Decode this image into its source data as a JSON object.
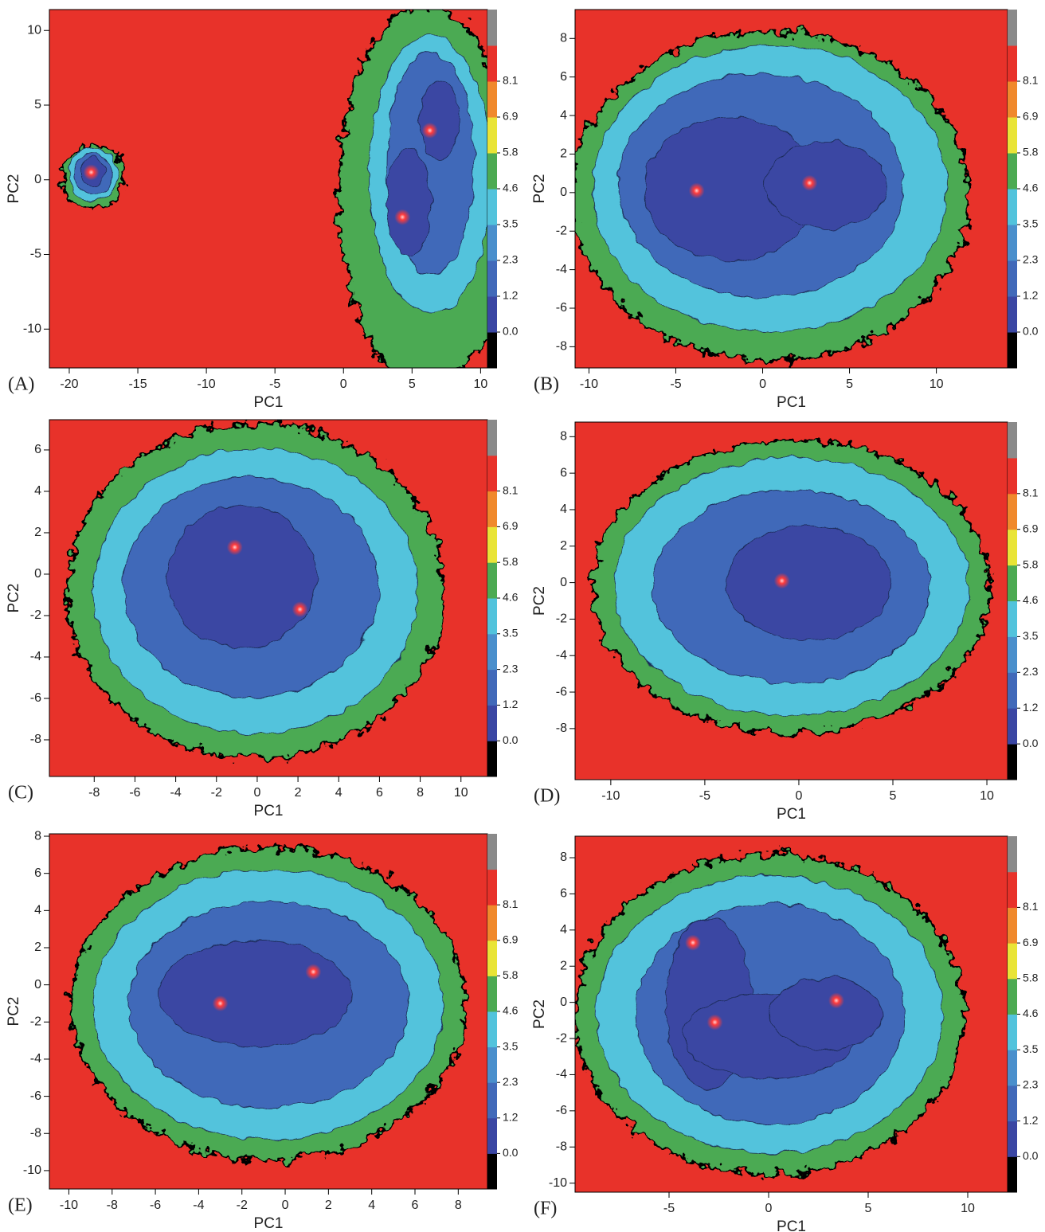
{
  "chart_data": [
    {
      "type": "contour",
      "label": "(A)",
      "xlabel": "PC1",
      "ylabel": "PC2",
      "xlim": [
        -21.45,
        10.5
      ],
      "ylim": [
        -12.6,
        11.4
      ],
      "xticks": [
        -20,
        -15,
        -10,
        -5,
        0,
        5,
        10
      ],
      "yticks": [
        10,
        5,
        0,
        -5,
        -10
      ],
      "colorbar_ticks": [
        {
          "value": 0,
          "label": "0.0"
        },
        1.2,
        2.3,
        3.5,
        4.6,
        5.8,
        6.9,
        8.1
      ],
      "colorbar_colors": [
        "#000000",
        "#3a46a3",
        "#4169b9",
        "#4a8fcc",
        "#52c3dc",
        "#4caa52",
        "#e9e437",
        "#f0892c",
        "#e8322a",
        "#8a8a8a"
      ],
      "minima_x": [
        -18.4,
        6.3,
        4.3
      ],
      "minima_y": [
        0.5,
        3.3,
        -2.5
      ]
    },
    {
      "type": "contour",
      "label": "(B)",
      "xlabel": "PC1",
      "ylabel": "PC2",
      "xlim": [
        -10.8,
        14.1
      ],
      "ylim": [
        -9.1,
        9.5
      ],
      "xticks": [
        -10,
        -5,
        0,
        5,
        10
      ],
      "yticks": [
        8,
        6,
        4,
        2,
        0,
        -2,
        -4,
        -6,
        -8
      ],
      "colorbar_ticks": [
        {
          "value": 0,
          "label": "0.0"
        },
        1.2,
        2.3,
        3.5,
        4.6,
        5.8,
        6.9,
        8.1
      ],
      "colorbar_colors": [
        "#000000",
        "#3a46a3",
        "#4169b9",
        "#4a8fcc",
        "#52c3dc",
        "#4caa52",
        "#e9e437",
        "#f0892c",
        "#e8322a",
        "#8a8a8a"
      ],
      "minima_x": [
        -3.8,
        2.7
      ],
      "minima_y": [
        0.1,
        0.5
      ]
    },
    {
      "type": "contour",
      "label": "(C)",
      "xlabel": "PC1",
      "ylabel": "PC2",
      "xlim": [
        -10.2,
        11.3
      ],
      "ylim": [
        -9.77,
        7.46
      ],
      "xticks": [
        -8,
        -6,
        -4,
        -2,
        0,
        2,
        4,
        6,
        8,
        10
      ],
      "yticks": [
        6,
        4,
        2,
        0,
        -2,
        -4,
        -6,
        -8
      ],
      "colorbar_ticks": [
        {
          "value": 0,
          "label": "0.0"
        },
        1.2,
        2.3,
        3.5,
        4.6,
        5.8,
        6.9,
        8.1
      ],
      "colorbar_colors": [
        "#000000",
        "#3a46a3",
        "#4169b9",
        "#4a8fcc",
        "#52c3dc",
        "#4caa52",
        "#e9e437",
        "#f0892c",
        "#e8322a",
        "#8a8a8a"
      ],
      "minima_x": [
        -1.1,
        2.1
      ],
      "minima_y": [
        1.3,
        -1.7
      ]
    },
    {
      "type": "contour",
      "label": "(D)",
      "xlabel": "PC1",
      "ylabel": "PC2",
      "xlim": [
        -11.9,
        11.1
      ],
      "ylim": [
        -10.8,
        8.8
      ],
      "xticks": [
        -10,
        -5,
        0,
        5,
        10
      ],
      "yticks": [
        8,
        6,
        4,
        2,
        0,
        -2,
        -4,
        -6,
        -8
      ],
      "colorbar_ticks": [
        {
          "value": 0,
          "label": "0.0"
        },
        1.2,
        2.3,
        3.5,
        4.6,
        5.8,
        6.9,
        8.1
      ],
      "colorbar_colors": [
        "#000000",
        "#3a46a3",
        "#4169b9",
        "#4a8fcc",
        "#52c3dc",
        "#4caa52",
        "#e9e437",
        "#f0892c",
        "#e8322a",
        "#8a8a8a"
      ],
      "minima_x": [
        -0.9
      ],
      "minima_y": [
        0.1
      ]
    },
    {
      "type": "contour",
      "label": "(E)",
      "xlabel": "PC1",
      "ylabel": "PC2",
      "xlim": [
        -10.9,
        9.35
      ],
      "ylim": [
        -10.99,
        8.13
      ],
      "xticks": [
        -10,
        -8,
        -6,
        -4,
        -2,
        0,
        2,
        4,
        6,
        8
      ],
      "yticks": [
        8,
        6,
        4,
        2,
        0,
        -2,
        -4,
        -6,
        -8,
        -10
      ],
      "colorbar_ticks": [
        {
          "value": 0,
          "label": "0.0"
        },
        1.2,
        2.3,
        3.5,
        4.6,
        5.8,
        6.9,
        8.1
      ],
      "colorbar_colors": [
        "#000000",
        "#3a46a3",
        "#4169b9",
        "#4a8fcc",
        "#52c3dc",
        "#4caa52",
        "#e9e437",
        "#f0892c",
        "#e8322a",
        "#8a8a8a"
      ],
      "minima_x": [
        -3.0,
        1.3
      ],
      "minima_y": [
        -1.0,
        0.7
      ]
    },
    {
      "type": "contour",
      "label": "(F)",
      "xlabel": "PC1",
      "ylabel": "PC2",
      "xlim": [
        -9.72,
        12.0
      ],
      "ylim": [
        -10.5,
        9.19
      ],
      "xticks": [
        -5,
        0,
        5,
        10
      ],
      "yticks": [
        8,
        6,
        4,
        2,
        0,
        -2,
        -4,
        -6,
        -8,
        -10
      ],
      "colorbar_ticks": [
        {
          "value": 0,
          "label": "0.0"
        },
        1.2,
        2.3,
        3.5,
        4.6,
        5.8,
        6.9,
        8.1
      ],
      "colorbar_colors": [
        "#000000",
        "#3a46a3",
        "#4169b9",
        "#4a8fcc",
        "#52c3dc",
        "#4caa52",
        "#e9e437",
        "#f0892c",
        "#e8322a",
        "#8a8a8a"
      ],
      "minima_x": [
        -3.8,
        -2.7,
        3.4
      ],
      "minima_y": [
        3.3,
        -1.1,
        0.1
      ]
    }
  ]
}
